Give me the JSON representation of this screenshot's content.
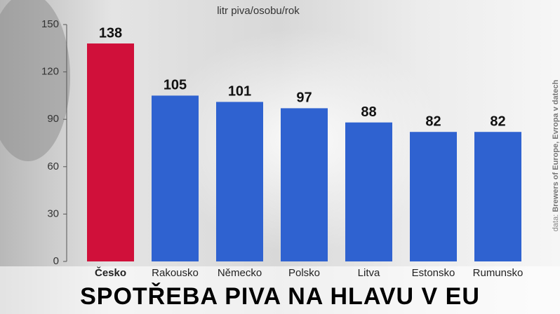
{
  "chart_data": {
    "type": "bar",
    "title": "SPOTŘEBA PIVA NA HLAVU V EU",
    "y_label": "litr piva/osobu/rok",
    "source_prefix": "data:",
    "source": "Brewers of Europe, Evropa v datech",
    "categories": [
      "Česko",
      "Rakousko",
      "Německo",
      "Polsko",
      "Litva",
      "Estonsko",
      "Rumunsko"
    ],
    "values": [
      138,
      105,
      101,
      97,
      88,
      82,
      82
    ],
    "colors": [
      "#d0103a",
      "#2f62d0",
      "#2f62d0",
      "#2f62d0",
      "#2f62d0",
      "#2f62d0",
      "#2f62d0"
    ],
    "ylim": [
      0,
      150
    ],
    "yticks": [
      0,
      30,
      60,
      90,
      120,
      150
    ],
    "grid": false
  }
}
